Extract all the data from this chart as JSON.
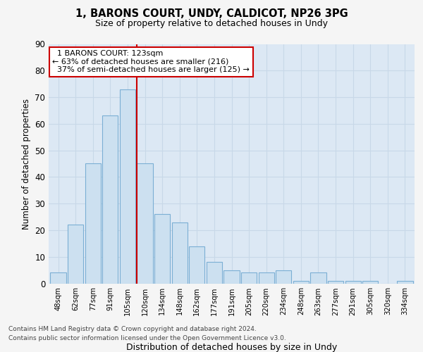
{
  "title1": "1, BARONS COURT, UNDY, CALDICOT, NP26 3PG",
  "title2": "Size of property relative to detached houses in Undy",
  "xlabel": "Distribution of detached houses by size in Undy",
  "ylabel": "Number of detached properties",
  "bar_labels": [
    "48sqm",
    "62sqm",
    "77sqm",
    "91sqm",
    "105sqm",
    "120sqm",
    "134sqm",
    "148sqm",
    "162sqm",
    "177sqm",
    "191sqm",
    "205sqm",
    "220sqm",
    "234sqm",
    "248sqm",
    "263sqm",
    "277sqm",
    "291sqm",
    "305sqm",
    "320sqm",
    "334sqm"
  ],
  "bar_heights": [
    4,
    22,
    45,
    63,
    73,
    45,
    26,
    23,
    14,
    8,
    5,
    4,
    4,
    5,
    1,
    4,
    1,
    1,
    1,
    0,
    1
  ],
  "bar_color": "#cce0f0",
  "bar_edge_color": "#7bafd4",
  "property_line_bin": 5,
  "property_label": "1 BARONS COURT: 123sqm",
  "pct_smaller": 63,
  "n_smaller": 216,
  "pct_larger": 37,
  "n_larger": 125,
  "annotation_box_color": "#ffffff",
  "annotation_box_edge_color": "#cc0000",
  "vline_color": "#cc0000",
  "ylim": [
    0,
    90
  ],
  "yticks": [
    0,
    10,
    20,
    30,
    40,
    50,
    60,
    70,
    80,
    90
  ],
  "grid_color": "#c8d8e8",
  "bg_color": "#dce8f4",
  "fig_bg_color": "#f5f5f5",
  "footer1": "Contains HM Land Registry data © Crown copyright and database right 2024.",
  "footer2": "Contains public sector information licensed under the Open Government Licence v3.0."
}
